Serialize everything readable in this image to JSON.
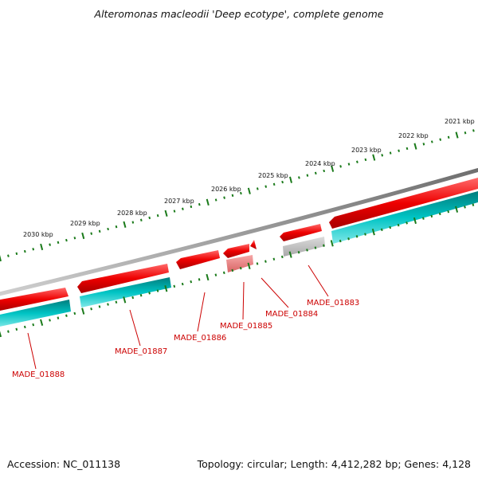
{
  "title": "Alteromonas macleodii 'Deep ecotype', complete genome",
  "accession": "Accession: NC_011138",
  "summary": "Topology: circular; Length: 4,412,282 bp; Genes: 4,128",
  "scale_labels": [
    "2021 kbp",
    "2022 kbp",
    "2023 kbp",
    "2024 kbp",
    "2025 kbp",
    "2026 kbp",
    "2027 kbp",
    "2028 kbp",
    "2029 kbp",
    "2030 kbp"
  ],
  "gene_labels": [
    "MADE_01883",
    "MADE_01884",
    "MADE_01885",
    "MADE_01886",
    "MADE_01887",
    "MADE_01888"
  ],
  "colors": {
    "backbone": "#808080",
    "gene_red": "#ee0000",
    "gene_light_red": "#f08080",
    "gene_gray": "#b0b0b0",
    "cds_cyan": "#00c4c4",
    "tick_green": "#1a7a1a",
    "label_red": "#cc0000"
  }
}
